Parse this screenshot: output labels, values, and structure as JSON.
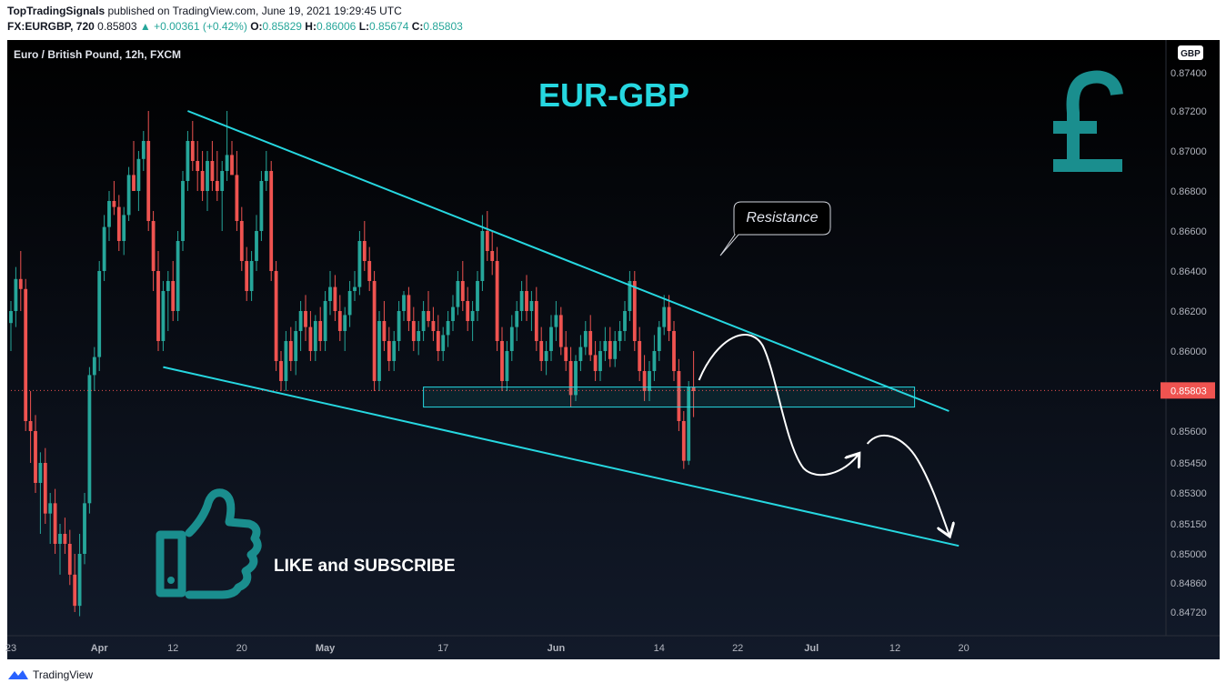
{
  "header": {
    "publisher": "TopTradingSignals",
    "published_text": "published on TradingView.com, June 19, 2021 19:29:45 UTC",
    "symbol": "FX:EURGBP, 720",
    "last": "0.85803",
    "change": "▲ +0.00361 (+0.42%)",
    "o_label": "O:",
    "o": "0.85829",
    "h_label": "H:",
    "h": "0.86006",
    "l_label": "L:",
    "l": "0.85674",
    "c_label": "C:",
    "c": "0.85803"
  },
  "footer": {
    "brand": "TradingView"
  },
  "chart_data": {
    "type": "candlestick",
    "pane_title": "Euro / British Pound, 12h, FXCM",
    "currency_badge": "GBP",
    "overlay_title": "EUR-GBP",
    "callout": "Resistance",
    "cta": "LIKE and SUBSCRIBE",
    "last_price_label": "0.85803",
    "yticks": [
      "0.87400",
      "0.87200",
      "0.87000",
      "0.86800",
      "0.86600",
      "0.86400",
      "0.86200",
      "0.86000",
      "0.85600",
      "0.85450",
      "0.85300",
      "0.85150",
      "0.85000",
      "0.84860",
      "0.84720"
    ],
    "ylim": [
      0.8463,
      0.8754
    ],
    "xticks": [
      "23",
      "Apr",
      "12",
      "20",
      "May",
      "17",
      "Jun",
      "14",
      "22",
      "Jul",
      "12",
      "20"
    ],
    "xtick_index": [
      0,
      18,
      33,
      47,
      64,
      88,
      111,
      132,
      148,
      163,
      180,
      194
    ],
    "up_color": "#26a69a",
    "down_color": "#ef5350",
    "line_color": "#26d7e0",
    "candles": [
      [
        0.8614,
        0.8625,
        0.86,
        0.862
      ],
      [
        0.862,
        0.8642,
        0.8612,
        0.8636
      ],
      [
        0.8636,
        0.865,
        0.862,
        0.8631
      ],
      [
        0.8631,
        0.8636,
        0.856,
        0.8565
      ],
      [
        0.8565,
        0.858,
        0.8545,
        0.856
      ],
      [
        0.856,
        0.8568,
        0.853,
        0.8535
      ],
      [
        0.8535,
        0.855,
        0.851,
        0.8545
      ],
      [
        0.8545,
        0.8552,
        0.8515,
        0.852
      ],
      [
        0.852,
        0.853,
        0.8505,
        0.8525
      ],
      [
        0.8525,
        0.8532,
        0.85,
        0.8505
      ],
      [
        0.8505,
        0.8515,
        0.849,
        0.851
      ],
      [
        0.851,
        0.8518,
        0.85,
        0.8505
      ],
      [
        0.8505,
        0.8512,
        0.8485,
        0.849
      ],
      [
        0.849,
        0.85,
        0.8472,
        0.8475
      ],
      [
        0.8475,
        0.851,
        0.847,
        0.85
      ],
      [
        0.85,
        0.853,
        0.8495,
        0.8525
      ],
      [
        0.8525,
        0.8592,
        0.852,
        0.8588
      ],
      [
        0.8588,
        0.8602,
        0.858,
        0.8597
      ],
      [
        0.8597,
        0.8645,
        0.859,
        0.864
      ],
      [
        0.864,
        0.8668,
        0.8635,
        0.8662
      ],
      [
        0.8662,
        0.868,
        0.8655,
        0.8675
      ],
      [
        0.8675,
        0.8685,
        0.8668,
        0.8672
      ],
      [
        0.8672,
        0.8678,
        0.865,
        0.8655
      ],
      [
        0.8655,
        0.8672,
        0.8648,
        0.8668
      ],
      [
        0.8668,
        0.8692,
        0.8665,
        0.8688
      ],
      [
        0.8688,
        0.8705,
        0.868,
        0.868
      ],
      [
        0.868,
        0.87,
        0.867,
        0.8696
      ],
      [
        0.8696,
        0.871,
        0.869,
        0.8705
      ],
      [
        0.8705,
        0.872,
        0.866,
        0.8665
      ],
      [
        0.8665,
        0.867,
        0.863,
        0.864
      ],
      [
        0.864,
        0.865,
        0.86,
        0.8605
      ],
      [
        0.8605,
        0.8635,
        0.86,
        0.863
      ],
      [
        0.863,
        0.864,
        0.861,
        0.8635
      ],
      [
        0.8635,
        0.8645,
        0.8615,
        0.862
      ],
      [
        0.862,
        0.866,
        0.8615,
        0.8655
      ],
      [
        0.8655,
        0.869,
        0.865,
        0.8685
      ],
      [
        0.8685,
        0.871,
        0.868,
        0.8705
      ],
      [
        0.8705,
        0.8715,
        0.869,
        0.8695
      ],
      [
        0.8695,
        0.8705,
        0.868,
        0.869
      ],
      [
        0.869,
        0.87,
        0.8675,
        0.868
      ],
      [
        0.868,
        0.87,
        0.867,
        0.8695
      ],
      [
        0.8695,
        0.8705,
        0.868,
        0.8685
      ],
      [
        0.8685,
        0.87,
        0.8675,
        0.868
      ],
      [
        0.868,
        0.8695,
        0.866,
        0.869
      ],
      [
        0.869,
        0.872,
        0.8685,
        0.8698
      ],
      [
        0.8698,
        0.8705,
        0.869,
        0.8688
      ],
      [
        0.8688,
        0.87,
        0.866,
        0.8665
      ],
      [
        0.8665,
        0.8672,
        0.864,
        0.8645
      ],
      [
        0.8645,
        0.8652,
        0.8625,
        0.863
      ],
      [
        0.863,
        0.865,
        0.8625,
        0.8645
      ],
      [
        0.8645,
        0.8668,
        0.864,
        0.866
      ],
      [
        0.866,
        0.869,
        0.8655,
        0.8685
      ],
      [
        0.8685,
        0.87,
        0.868,
        0.869
      ],
      [
        0.869,
        0.8695,
        0.8635,
        0.864
      ],
      [
        0.864,
        0.8645,
        0.859,
        0.8595
      ],
      [
        0.8595,
        0.86,
        0.858,
        0.8585
      ],
      [
        0.8585,
        0.861,
        0.858,
        0.8605
      ],
      [
        0.8605,
        0.8612,
        0.859,
        0.8595
      ],
      [
        0.8595,
        0.8615,
        0.8588,
        0.861
      ],
      [
        0.861,
        0.8625,
        0.86,
        0.862
      ],
      [
        0.862,
        0.8628,
        0.8605,
        0.8612
      ],
      [
        0.8612,
        0.862,
        0.8595,
        0.86
      ],
      [
        0.86,
        0.8618,
        0.8595,
        0.8615
      ],
      [
        0.8615,
        0.8622,
        0.86,
        0.8605
      ],
      [
        0.8605,
        0.863,
        0.86,
        0.8625
      ],
      [
        0.8625,
        0.864,
        0.8618,
        0.8632
      ],
      [
        0.8632,
        0.8638,
        0.8615,
        0.862
      ],
      [
        0.862,
        0.8628,
        0.8605,
        0.861
      ],
      [
        0.861,
        0.8622,
        0.86,
        0.8618
      ],
      [
        0.8618,
        0.8635,
        0.8612,
        0.863
      ],
      [
        0.863,
        0.864,
        0.8625,
        0.8632
      ],
      [
        0.8632,
        0.866,
        0.8628,
        0.8655
      ],
      [
        0.8655,
        0.8665,
        0.864,
        0.8645
      ],
      [
        0.8645,
        0.8652,
        0.863,
        0.8635
      ],
      [
        0.8635,
        0.864,
        0.858,
        0.8585
      ],
      [
        0.8585,
        0.862,
        0.858,
        0.8615
      ],
      [
        0.8615,
        0.8625,
        0.86,
        0.8605
      ],
      [
        0.8605,
        0.8612,
        0.859,
        0.8595
      ],
      [
        0.8595,
        0.861,
        0.859,
        0.8605
      ],
      [
        0.8605,
        0.8625,
        0.86,
        0.862
      ],
      [
        0.862,
        0.863,
        0.8615,
        0.8628
      ],
      [
        0.8628,
        0.8632,
        0.861,
        0.8615
      ],
      [
        0.8615,
        0.8622,
        0.86,
        0.8605
      ],
      [
        0.8605,
        0.8615,
        0.8598,
        0.861
      ],
      [
        0.861,
        0.8625,
        0.8605,
        0.862
      ],
      [
        0.862,
        0.863,
        0.8612,
        0.8615
      ],
      [
        0.8615,
        0.8622,
        0.8605,
        0.861
      ],
      [
        0.861,
        0.8618,
        0.8595,
        0.86
      ],
      [
        0.86,
        0.8612,
        0.8595,
        0.8608
      ],
      [
        0.8608,
        0.862,
        0.8602,
        0.8615
      ],
      [
        0.8615,
        0.8628,
        0.861,
        0.8622
      ],
      [
        0.8622,
        0.864,
        0.8618,
        0.8635
      ],
      [
        0.8635,
        0.8645,
        0.862,
        0.8625
      ],
      [
        0.8625,
        0.8632,
        0.861,
        0.8615
      ],
      [
        0.8615,
        0.8625,
        0.8605,
        0.862
      ],
      [
        0.862,
        0.864,
        0.8615,
        0.8635
      ],
      [
        0.8635,
        0.8668,
        0.863,
        0.866
      ],
      [
        0.866,
        0.867,
        0.8645,
        0.865
      ],
      [
        0.865,
        0.866,
        0.8638,
        0.8645
      ],
      [
        0.8645,
        0.8652,
        0.86,
        0.8605
      ],
      [
        0.8605,
        0.8612,
        0.858,
        0.8585
      ],
      [
        0.8585,
        0.8605,
        0.858,
        0.86
      ],
      [
        0.86,
        0.8618,
        0.8595,
        0.8612
      ],
      [
        0.8612,
        0.8625,
        0.8605,
        0.862
      ],
      [
        0.862,
        0.8635,
        0.8615,
        0.863
      ],
      [
        0.863,
        0.8638,
        0.8615,
        0.862
      ],
      [
        0.862,
        0.863,
        0.861,
        0.8625
      ],
      [
        0.8625,
        0.8632,
        0.86,
        0.8605
      ],
      [
        0.8605,
        0.8612,
        0.859,
        0.8595
      ],
      [
        0.8595,
        0.8605,
        0.8588,
        0.86
      ],
      [
        0.86,
        0.8618,
        0.8595,
        0.8612
      ],
      [
        0.8612,
        0.8625,
        0.8605,
        0.8618
      ],
      [
        0.8618,
        0.8622,
        0.8598,
        0.8602
      ],
      [
        0.8602,
        0.861,
        0.859,
        0.8595
      ],
      [
        0.8595,
        0.8602,
        0.8572,
        0.8578
      ],
      [
        0.8578,
        0.8598,
        0.8575,
        0.8595
      ],
      [
        0.8595,
        0.8608,
        0.859,
        0.8602
      ],
      [
        0.8602,
        0.8615,
        0.8598,
        0.861
      ],
      [
        0.861,
        0.8618,
        0.8595,
        0.8598
      ],
      [
        0.8598,
        0.8605,
        0.8585,
        0.859
      ],
      [
        0.859,
        0.8605,
        0.8585,
        0.86
      ],
      [
        0.86,
        0.8612,
        0.8595,
        0.8605
      ],
      [
        0.8605,
        0.8612,
        0.8592,
        0.8596
      ],
      [
        0.8596,
        0.861,
        0.8592,
        0.8605
      ],
      [
        0.8605,
        0.8615,
        0.86,
        0.861
      ],
      [
        0.861,
        0.8625,
        0.8605,
        0.862
      ],
      [
        0.862,
        0.864,
        0.8615,
        0.8635
      ],
      [
        0.8635,
        0.864,
        0.86,
        0.8605
      ],
      [
        0.8605,
        0.8612,
        0.8585,
        0.859
      ],
      [
        0.859,
        0.8598,
        0.8575,
        0.858
      ],
      [
        0.858,
        0.8595,
        0.8575,
        0.859
      ],
      [
        0.859,
        0.8608,
        0.8585,
        0.86
      ],
      [
        0.86,
        0.8615,
        0.8595,
        0.8612
      ],
      [
        0.8612,
        0.8628,
        0.8608,
        0.8622
      ],
      [
        0.8622,
        0.8628,
        0.8605,
        0.861
      ],
      [
        0.861,
        0.8615,
        0.8585,
        0.859
      ],
      [
        0.859,
        0.8596,
        0.856,
        0.8565
      ],
      [
        0.8565,
        0.857,
        0.8542,
        0.8546
      ],
      [
        0.8546,
        0.8585,
        0.8544,
        0.8582
      ],
      [
        0.8582,
        0.86,
        0.8567,
        0.858
      ]
    ],
    "annotations": {
      "upper_trendline": [
        [
          36,
          0.872
        ],
        [
          191,
          0.857
        ]
      ],
      "lower_trendline": [
        [
          31,
          0.8592
        ],
        [
          193,
          0.8504
        ]
      ],
      "support_zone": [
        [
          84,
          0.8582
        ],
        [
          184,
          0.8572
        ]
      ]
    }
  }
}
